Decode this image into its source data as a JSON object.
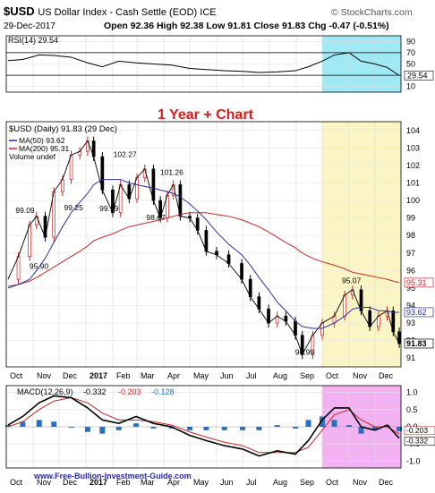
{
  "header": {
    "symbol": "$USD",
    "name": "US Dollar Index - Cash Settle (EOD) ICE",
    "date": "29-Dec-2017",
    "ohlc": "Open 92.36  High 92.38  Low 91.81  Close 91.83  Chg -0.47 (-0.51%)",
    "watermark": "© StockCharts.com"
  },
  "overlay_title": "1 Year + Chart",
  "footer_url": "www.Free-Bullion-Investment-Guide.com",
  "colors": {
    "price": "#000000",
    "up": "#d32020",
    "ma50": "#2b2f9e",
    "ma200": "#c82828",
    "title": "#e81818",
    "highlight_cyan": "#9fe9f5",
    "highlight_yellow": "#fbf5c5",
    "highlight_pink": "#f2b2f2",
    "macd_hist": "#2a6fbf"
  },
  "chart_data": [
    {
      "type": "line",
      "panel": "RSI",
      "legend": "RSI(14) 29.54",
      "last_label": "29.54",
      "y_ticks": [
        "90",
        "70",
        "50",
        "30",
        "10"
      ],
      "ylim": [
        0,
        100
      ],
      "levels": [
        70,
        30
      ],
      "x": [
        "2016-10-03",
        "2016-10-20",
        "2016-11-08",
        "2016-11-25",
        "2016-12-15",
        "2017-01-03",
        "2017-01-20",
        "2017-02-08",
        "2017-02-28",
        "2017-03-20",
        "2017-04-10",
        "2017-05-01",
        "2017-05-20",
        "2017-06-10",
        "2017-07-01",
        "2017-07-20",
        "2017-08-10",
        "2017-08-31",
        "2017-09-15",
        "2017-10-01",
        "2017-10-15",
        "2017-11-01",
        "2017-11-15",
        "2017-12-01",
        "2017-12-15",
        "2017-12-29"
      ],
      "values": [
        56,
        58,
        66,
        65,
        62,
        52,
        45,
        55,
        52,
        50,
        48,
        42,
        40,
        38,
        37,
        35,
        36,
        38,
        45,
        55,
        66,
        70,
        55,
        50,
        44,
        29.54
      ]
    },
    {
      "type": "line",
      "panel": "price",
      "legend": "$USD (Daily) 91.83 (29 Dec)",
      "ma50_label": "MA(50) 93.62",
      "ma200_label": "MA(200) 95.31",
      "volume_label": "Volume undef",
      "y_ticks": [
        "104",
        "103",
        "102",
        "101",
        "100",
        "99",
        "98",
        "97",
        "96",
        "95",
        "94",
        "93",
        "92",
        "91"
      ],
      "ylim": [
        90.5,
        104.5
      ],
      "x_ticks": [
        "Oct",
        "Nov",
        "Dec",
        "2017",
        "Feb",
        "Mar",
        "Apr",
        "May",
        "Jun",
        "Jul",
        "Aug",
        "Sep",
        "Oct",
        "Nov",
        "Dec"
      ],
      "x": [
        "2016-10-03",
        "2016-10-15",
        "2016-10-28",
        "2016-11-05",
        "2016-11-15",
        "2016-11-25",
        "2016-12-05",
        "2016-12-15",
        "2016-12-25",
        "2017-01-03",
        "2017-01-10",
        "2017-01-20",
        "2017-02-01",
        "2017-02-10",
        "2017-02-20",
        "2017-03-01",
        "2017-03-10",
        "2017-03-20",
        "2017-03-28",
        "2017-04-05",
        "2017-04-12",
        "2017-04-20",
        "2017-05-01",
        "2017-05-10",
        "2017-05-20",
        "2017-06-01",
        "2017-06-15",
        "2017-06-30",
        "2017-07-10",
        "2017-07-20",
        "2017-07-31",
        "2017-08-10",
        "2017-08-20",
        "2017-08-31",
        "2017-09-08",
        "2017-09-20",
        "2017-10-01",
        "2017-10-15",
        "2017-10-27",
        "2017-11-05",
        "2017-11-15",
        "2017-11-25",
        "2017-12-05",
        "2017-12-15",
        "2017-12-22",
        "2017-12-29"
      ],
      "series": [
        {
          "values": [
            95.5,
            96.8,
            98.6,
            99.1,
            97.9,
            100.5,
            101.2,
            102.6,
            102.8,
            103.4,
            102.5,
            100.6,
            99.3,
            100.9,
            100.1,
            101.3,
            101.8,
            100.0,
            99.0,
            100.3,
            100.9,
            99.1,
            99.0,
            98.3,
            97.1,
            96.9,
            96.4,
            95.5,
            94.5,
            93.8,
            93.0,
            93.4,
            93.1,
            92.3,
            91.2,
            92.3,
            93.0,
            93.4,
            94.6,
            94.9,
            93.7,
            92.8,
            93.4,
            93.7,
            92.5,
            91.83
          ]
        },
        {
          "values": [
            95.0,
            95.2,
            95.5,
            96.0,
            96.7,
            97.6,
            98.5,
            99.3,
            99.9,
            100.4,
            100.9,
            101.2,
            101.2,
            101.2,
            101.0,
            100.9,
            100.8,
            100.7,
            100.6,
            100.5,
            100.4,
            100.2,
            99.8,
            99.4,
            98.9,
            98.2,
            97.5,
            96.9,
            96.3,
            95.6,
            94.9,
            94.2,
            93.7,
            93.1,
            92.8,
            92.7,
            92.7,
            93.0,
            93.4,
            93.8,
            93.9,
            93.9,
            93.7,
            93.7,
            93.6,
            93.62
          ]
        },
        {
          "values": [
            95.1,
            95.2,
            95.4,
            95.6,
            95.9,
            96.2,
            96.5,
            96.8,
            97.1,
            97.4,
            97.7,
            97.9,
            98.1,
            98.3,
            98.5,
            98.6,
            98.7,
            98.8,
            98.9,
            99.0,
            99.1,
            99.2,
            99.3,
            99.3,
            99.3,
            99.2,
            99.1,
            98.9,
            98.7,
            98.5,
            98.2,
            97.9,
            97.6,
            97.3,
            97.0,
            96.7,
            96.5,
            96.3,
            96.1,
            95.9,
            95.8,
            95.7,
            95.6,
            95.5,
            95.4,
            95.31
          ]
        }
      ],
      "annotations": [
        {
          "x": "2016-10-20",
          "y": 99.09,
          "label": "99.09"
        },
        {
          "x": "2016-11-05",
          "y": 95.9,
          "label": "95.90"
        },
        {
          "x": "2016-12-15",
          "y": 99.25,
          "label": "99.25"
        },
        {
          "x": "2017-02-10",
          "y": 102.27,
          "label": "102.27"
        },
        {
          "x": "2017-01-25",
          "y": 99.19,
          "label": "99.19"
        },
        {
          "x": "2017-04-05",
          "y": 101.26,
          "label": "101.26"
        },
        {
          "x": "2017-03-20",
          "y": 98.67,
          "label": "98.67"
        },
        {
          "x": "2017-11-01",
          "y": 95.07,
          "label": "95.07"
        },
        {
          "x": "2017-09-08",
          "y": 90.99,
          "label": "90.99"
        }
      ],
      "last_labels": [
        "95.31",
        "93.62",
        "91.83"
      ]
    },
    {
      "type": "line",
      "panel": "MACD",
      "legend_name": "MACD(12,26,9)",
      "legend_values": [
        "-0.332",
        "-0.203",
        "-0.128"
      ],
      "y_ticks": [
        "1.0",
        "0.5",
        "0.0",
        "-0.5",
        "-1.0"
      ],
      "ylim": [
        -1.2,
        1.2
      ],
      "last_labels": [
        "-0.203",
        "-0.332"
      ],
      "x_ticks": [
        "Oct",
        "Nov",
        "Dec",
        "2017",
        "Feb",
        "Mar",
        "Apr",
        "May",
        "Jun",
        "Jul",
        "Aug",
        "Sep",
        "Oct",
        "Nov",
        "Dec"
      ],
      "x": [
        "2016-10-03",
        "2016-10-20",
        "2016-11-08",
        "2016-11-25",
        "2016-12-15",
        "2017-01-03",
        "2017-01-20",
        "2017-02-08",
        "2017-02-28",
        "2017-03-20",
        "2017-04-10",
        "2017-05-01",
        "2017-05-20",
        "2017-06-10",
        "2017-07-01",
        "2017-07-20",
        "2017-08-10",
        "2017-08-31",
        "2017-09-15",
        "2017-10-01",
        "2017-10-15",
        "2017-11-01",
        "2017-11-15",
        "2017-12-01",
        "2017-12-15",
        "2017-12-29"
      ],
      "series": [
        {
          "values": [
            0.05,
            0.3,
            0.7,
            0.9,
            0.85,
            0.55,
            0.2,
            0.1,
            0.3,
            0.1,
            0.0,
            -0.25,
            -0.4,
            -0.55,
            -0.65,
            -0.85,
            -0.7,
            -0.8,
            -0.4,
            0.2,
            0.55,
            0.55,
            0.0,
            -0.1,
            0.05,
            -0.332
          ]
        },
        {
          "values": [
            0.0,
            0.15,
            0.5,
            0.75,
            0.85,
            0.7,
            0.4,
            0.2,
            0.2,
            0.15,
            0.05,
            -0.15,
            -0.3,
            -0.45,
            -0.55,
            -0.75,
            -0.75,
            -0.75,
            -0.6,
            -0.1,
            0.35,
            0.5,
            0.2,
            0.0,
            0.0,
            -0.203
          ]
        },
        {
          "values": [
            0.05,
            0.15,
            0.2,
            0.15,
            0.0,
            -0.15,
            -0.2,
            -0.1,
            0.1,
            -0.05,
            -0.05,
            -0.1,
            -0.1,
            -0.1,
            -0.1,
            -0.1,
            0.05,
            -0.05,
            0.2,
            0.3,
            0.2,
            0.05,
            -0.2,
            -0.1,
            0.05,
            -0.128
          ]
        }
      ]
    }
  ]
}
